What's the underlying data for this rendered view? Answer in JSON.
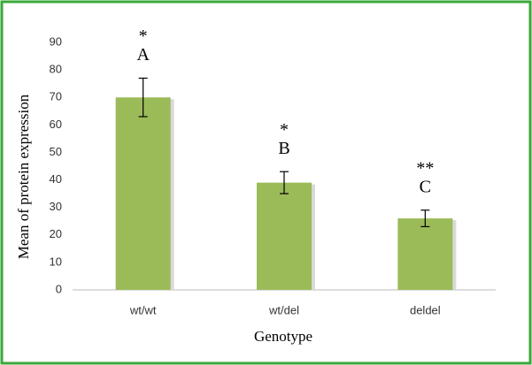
{
  "chart_data": {
    "type": "bar",
    "x_label": "Genotype",
    "y_label": "Mean of protein expression",
    "categories": [
      "wt/wt",
      "wt/del",
      "deldel"
    ],
    "values": [
      70,
      39,
      26
    ],
    "errors": [
      7,
      4,
      3
    ],
    "significance_stars": [
      "*",
      "*",
      "**"
    ],
    "significance_letters": [
      "A",
      "B",
      "C"
    ],
    "color": "#9bbb59",
    "ylim": [
      0,
      90
    ],
    "yticks": [
      0,
      10,
      20,
      30,
      40,
      50,
      60,
      70,
      80,
      90
    ],
    "grid": false
  }
}
